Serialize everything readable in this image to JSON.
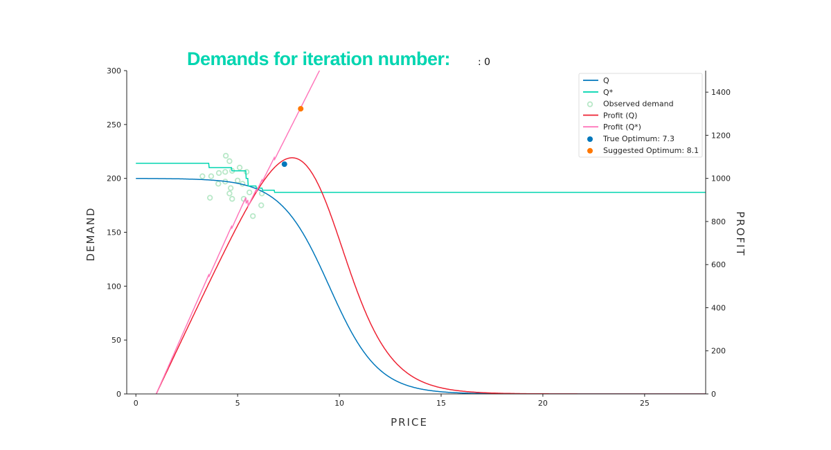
{
  "header": {
    "title": "Demands for iteration number:",
    "iteration_label": ": 0"
  },
  "chart_data": {
    "type": "line",
    "xlabel": "PRICE",
    "ylabel": "DEMAND",
    "y2label": "PROFIT",
    "xlim": [
      -0.45,
      28
    ],
    "ylim": [
      0,
      300
    ],
    "y2lim": [
      0,
      1500
    ],
    "xticks": [
      0,
      5,
      10,
      15,
      20,
      25
    ],
    "yticks": [
      0,
      50,
      100,
      150,
      200,
      250,
      300
    ],
    "y2ticks": [
      0,
      200,
      400,
      600,
      800,
      1000,
      1200,
      1400
    ],
    "grid": false,
    "legend_placement": "top-right",
    "colors": {
      "Q": "#0077bb",
      "Qstar": "#00d5b0",
      "observed": "#b8e8c8",
      "profitQ": "#ee2233",
      "profitQstar": "#ff77bb",
      "true_opt": "#0077bb",
      "suggested_opt": "#ff7700"
    },
    "legend": [
      "Q",
      "Q*",
      "Observed demand",
      "Profit (Q)",
      "Profit (Q*)",
      "True Optimum: 7.3",
      "Suggested Optimum: 8.1"
    ],
    "unit_cost": 1,
    "Q_model": {
      "max": 200,
      "midpoint": 9.5,
      "scale": 1.2
    },
    "Qstar_steps": [
      [
        0,
        214
      ],
      [
        3.6,
        210
      ],
      [
        4.7,
        207
      ],
      [
        5.4,
        200
      ],
      [
        5.5,
        193
      ],
      [
        5.9,
        191
      ],
      [
        6.2,
        189
      ],
      [
        6.8,
        187
      ],
      [
        28,
        187
      ]
    ],
    "observed": [
      [
        4.42,
        221
      ],
      [
        4.6,
        216
      ],
      [
        3.27,
        202
      ],
      [
        3.7,
        202
      ],
      [
        4.08,
        205
      ],
      [
        4.39,
        206
      ],
      [
        4.73,
        207
      ],
      [
        5.1,
        210
      ],
      [
        5.44,
        206
      ],
      [
        4.05,
        195
      ],
      [
        4.39,
        197
      ],
      [
        4.66,
        191
      ],
      [
        4.6,
        186
      ],
      [
        4.73,
        181
      ],
      [
        3.64,
        182
      ],
      [
        5.3,
        181
      ],
      [
        5.58,
        187
      ],
      [
        5.24,
        195
      ],
      [
        6.16,
        175
      ],
      [
        5.75,
        165
      ],
      [
        6.19,
        186
      ],
      [
        5.0,
        198
      ]
    ],
    "true_optimum": {
      "price": 7.3,
      "profit": 1066
    },
    "suggested_optimum": {
      "price": 8.1,
      "profit": 1323
    }
  }
}
